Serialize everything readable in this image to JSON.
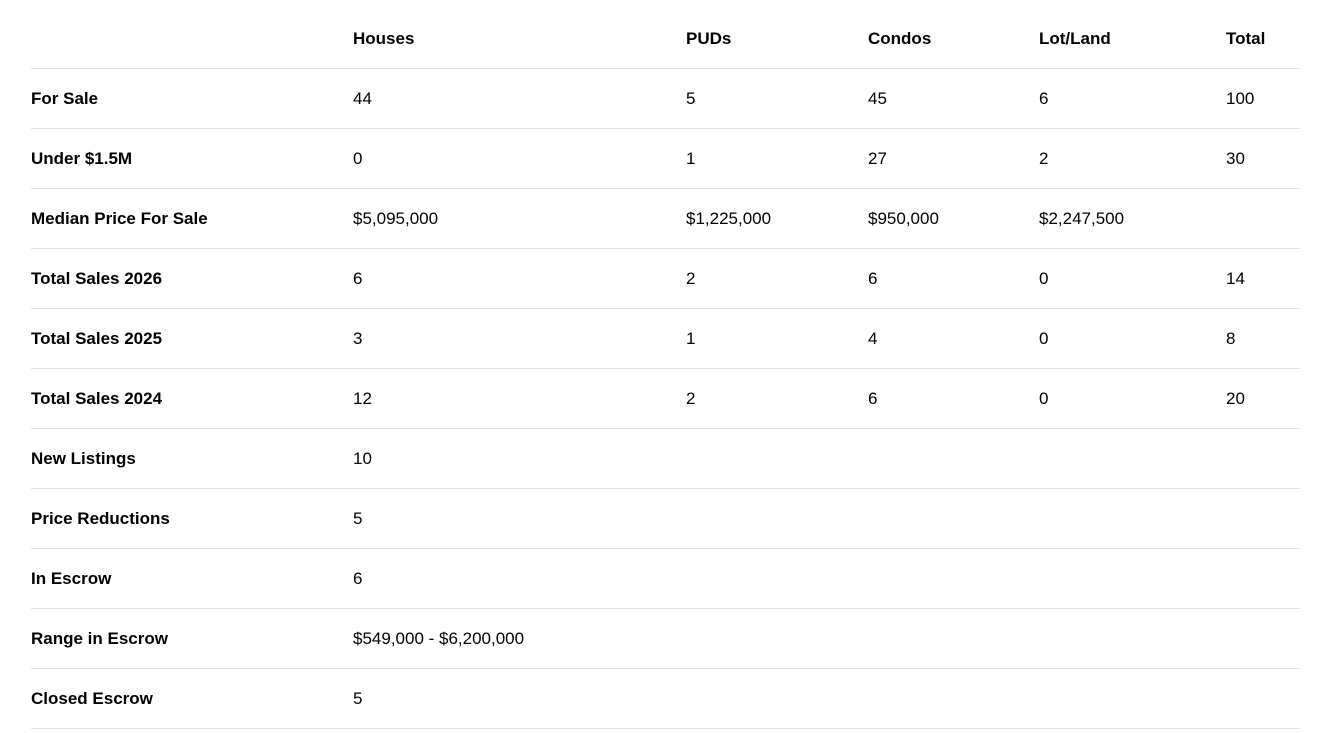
{
  "table": {
    "headers": [
      "",
      "Houses",
      "PUDs",
      "Condos",
      "Lot/Land",
      "Total"
    ],
    "rows": [
      [
        "For Sale",
        "44",
        "5",
        "45",
        "6",
        "100"
      ],
      [
        "Under $1.5M",
        "0",
        "1",
        "27",
        "2",
        "30"
      ],
      [
        "Median Price For Sale",
        "$5,095,000",
        "$1,225,000",
        "$950,000",
        "$2,247,500",
        ""
      ],
      [
        "Total Sales 2026",
        "6",
        "2",
        "6",
        "0",
        "14"
      ],
      [
        "Total Sales 2025",
        "3",
        "1",
        "4",
        "0",
        "8"
      ],
      [
        "Total Sales 2024",
        "12",
        "2",
        "6",
        "0",
        "20"
      ],
      [
        "New Listings",
        "10",
        "",
        "",
        "",
        ""
      ],
      [
        "Price Reductions",
        "5",
        "",
        "",
        "",
        ""
      ],
      [
        "In Escrow",
        "6",
        "",
        "",
        "",
        ""
      ],
      [
        "Range in Escrow",
        "$549,000 - $6,200,000",
        "",
        "",
        "",
        ""
      ],
      [
        "Closed Escrow",
        "5",
        "",
        "",
        "",
        ""
      ]
    ]
  }
}
